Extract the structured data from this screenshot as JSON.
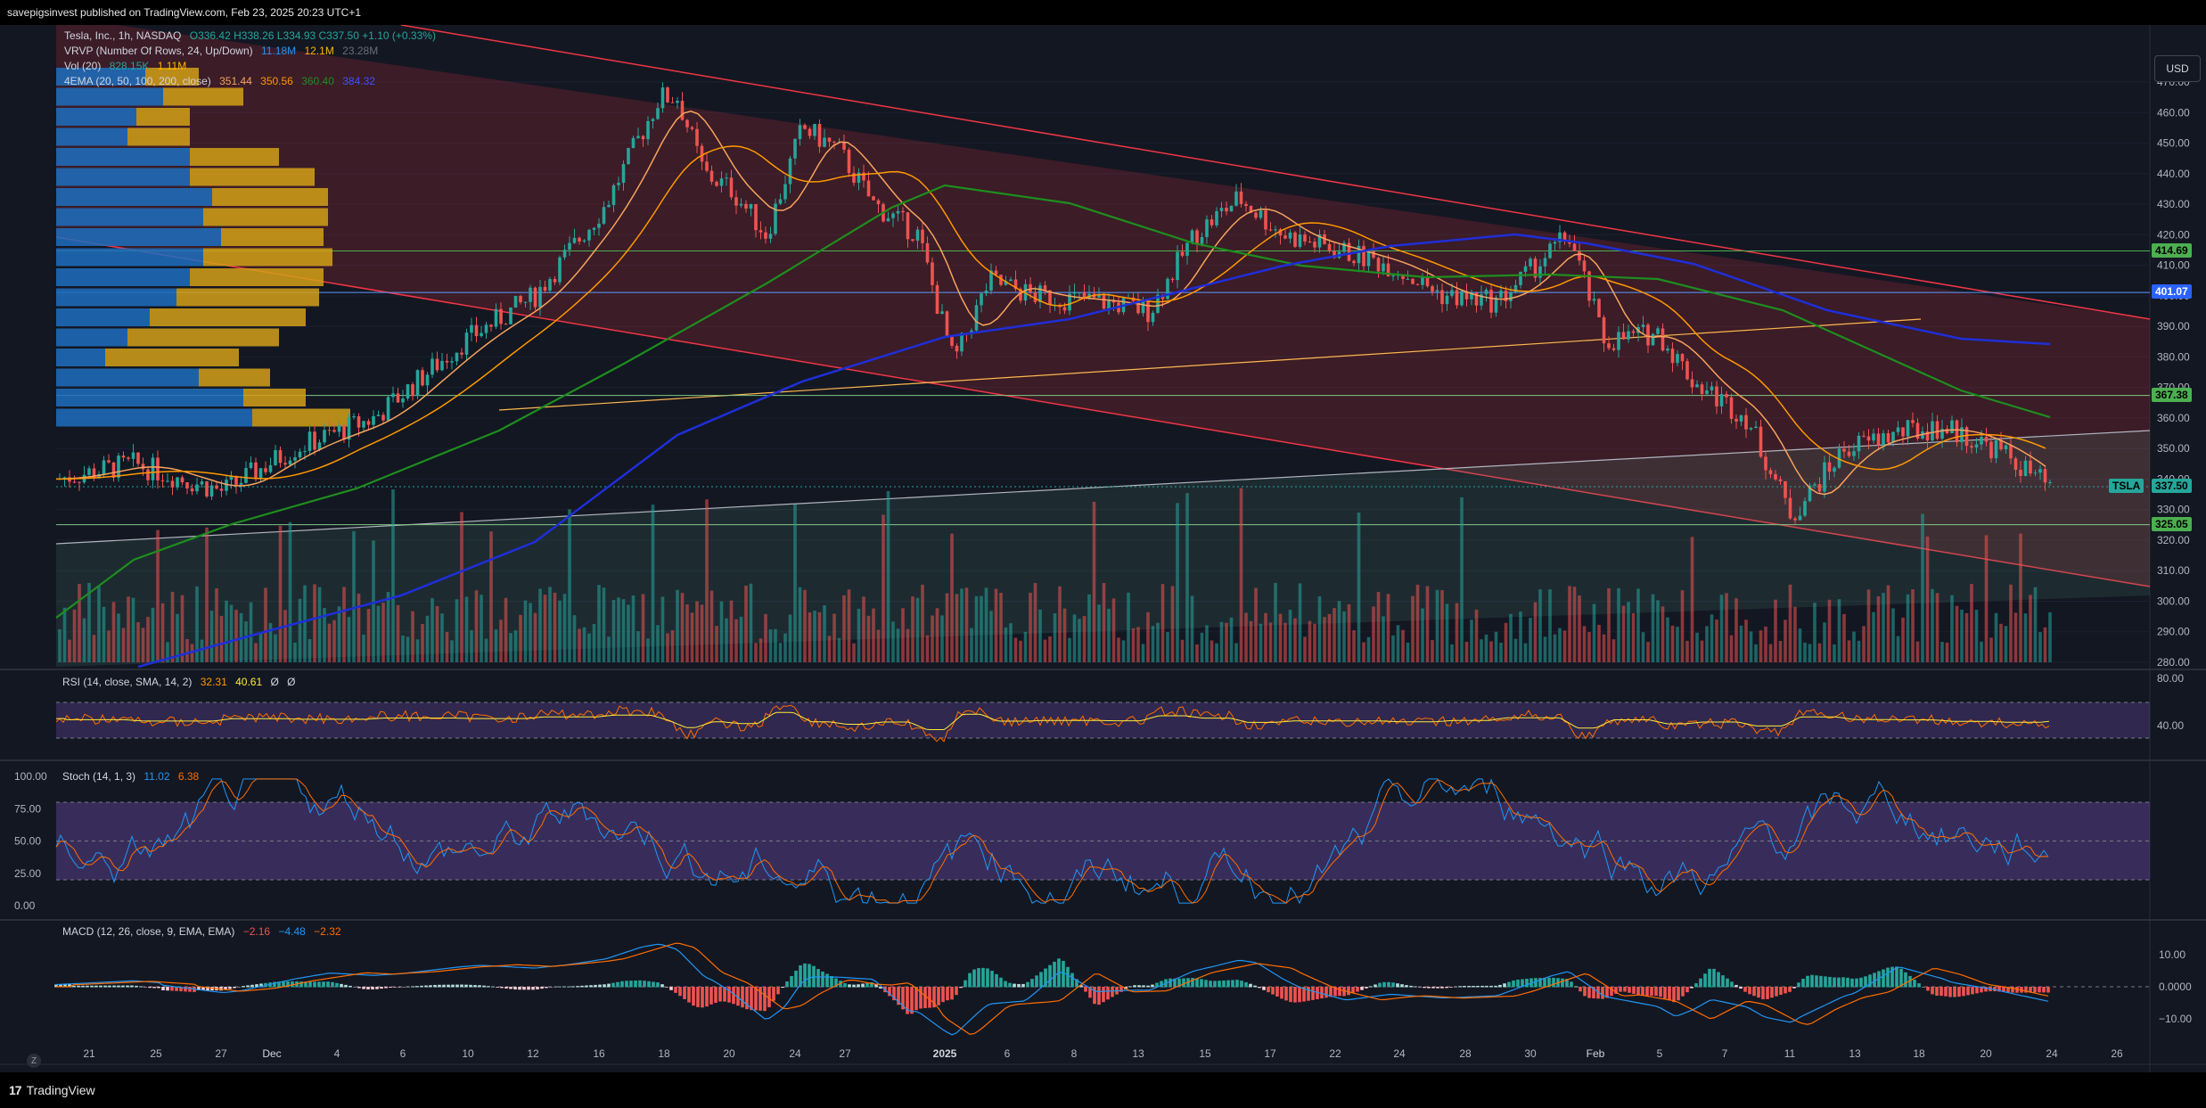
{
  "header": {
    "publish_line": "savepigsinvest published on TradingView.com, Feb 23, 2025 20:23 UTC+1"
  },
  "legend": {
    "title": "Tesla, Inc., 1h, NASDAQ",
    "ohlc": "O336.42  H338.26  L334.93  C337.50  +1.10 (+0.33%)",
    "vrvp_label": "VRVP (Number Of Rows, 24, Up/Down)",
    "vrvp_v1": "11.18M",
    "vrvp_v2": "12.1M",
    "vrvp_v3": "23.28M",
    "vol_label": "Vol (20)",
    "vol_v1": "828.15K",
    "vol_v2": "1.11M",
    "ema_label": "4EMA (20, 50, 100, 200, close)",
    "ema_v1": "351.44",
    "ema_v2": "350.56",
    "ema_v3": "360.40",
    "ema_v4": "384.32"
  },
  "rsi_legend": {
    "label": "RSI (14, close, SMA, 14, 2)",
    "v1": "32.31",
    "v2": "40.61",
    "v3": "Ø",
    "v4": "Ø"
  },
  "stoch_legend": {
    "label": "Stoch (14, 1, 3)",
    "v1": "11.02",
    "v2": "6.38"
  },
  "macd_legend": {
    "label": "MACD (12, 26, close, 9, EMA, EMA)",
    "v1": "−2.16",
    "v2": "−4.48",
    "v3": "−2.32"
  },
  "price_axis": {
    "currency": "USD",
    "ticks": [
      "470.00",
      "460.00",
      "450.00",
      "440.00",
      "430.00",
      "420.00",
      "410.00",
      "400.00",
      "390.00",
      "380.00",
      "370.00",
      "360.00",
      "350.00",
      "340.00",
      "330.00",
      "320.00",
      "310.00",
      "300.00",
      "290.00",
      "280.00"
    ],
    "tags": [
      {
        "text": "414.69",
        "color": "#4caf50"
      },
      {
        "text": "401.07",
        "color": "#2962ff"
      },
      {
        "text": "367.38",
        "color": "#4caf50"
      },
      {
        "text": "337.50",
        "color": "#26a69a"
      },
      {
        "text": "325.05",
        "color": "#4caf50"
      }
    ],
    "symbol_tag": "TSLA"
  },
  "rsi_axis": {
    "ticks": [
      "80.00",
      "40.00"
    ]
  },
  "stoch_axis": {
    "ticks": [
      "100.00",
      "75.00",
      "50.00",
      "25.00",
      "0.00"
    ]
  },
  "macd_axis": {
    "ticks": [
      "10.00",
      "0.0000",
      "−10.00"
    ]
  },
  "time_axis": {
    "labels": [
      "21",
      "25",
      "27",
      "Dec",
      "4",
      "6",
      "10",
      "12",
      "16",
      "18",
      "20",
      "24",
      "27",
      "2025",
      "6",
      "8",
      "13",
      "15",
      "17",
      "22",
      "24",
      "28",
      "30",
      "Feb",
      "5",
      "7",
      "11",
      "13",
      "18",
      "20",
      "24",
      "26"
    ]
  },
  "footer": {
    "brand": "TradingView",
    "zoom": "Z"
  },
  "colors": {
    "bg": "#131722",
    "up": "#26a69a",
    "down": "#ef5350",
    "ema20": "#f7a35c",
    "ema50": "#ff9800",
    "ema100": "#1e8e1e",
    "ema200": "#1f2ed8",
    "channel": "#f23645"
  }
}
